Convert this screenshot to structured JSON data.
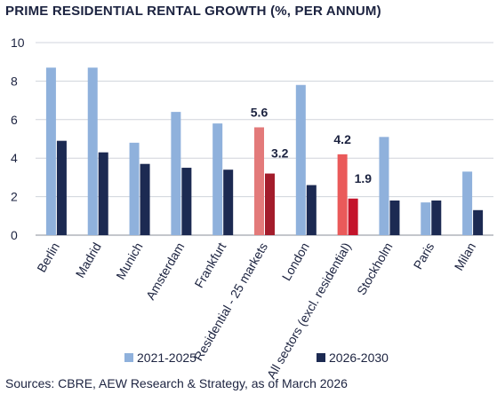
{
  "chart_data": {
    "type": "bar",
    "title": "PRIME RESIDENTIAL RENTAL GROWTH (%, PER ANNUM)",
    "categories": [
      "Berlin",
      "Madrid",
      "Munich",
      "Amsterdam",
      "Frankfurt",
      "Residential - 25 markets",
      "London",
      "All sectors (excl. residential)",
      "Stockholm",
      "Paris",
      "Milan"
    ],
    "series": [
      {
        "name": "2021-2025",
        "values": [
          8.7,
          8.7,
          4.8,
          6.4,
          5.8,
          5.6,
          7.8,
          4.2,
          5.1,
          1.7,
          3.3
        ]
      },
      {
        "name": "2026-2030",
        "values": [
          4.9,
          4.3,
          3.7,
          3.5,
          3.4,
          3.2,
          2.6,
          1.9,
          1.8,
          1.8,
          1.3
        ]
      }
    ],
    "ylim": [
      0,
      10
    ],
    "yticks": [
      0,
      2,
      4,
      6,
      8,
      10
    ],
    "grid": true,
    "legend_position": "bottom",
    "highlight_categories": [
      "Residential - 25 markets",
      "All sectors (excl. residential)"
    ],
    "data_labels": [
      {
        "category": "Residential - 25 markets",
        "series": 0,
        "text": "5.6"
      },
      {
        "category": "Residential - 25 markets",
        "series": 1,
        "text": "3.2"
      },
      {
        "category": "All sectors (excl. residential)",
        "series": 0,
        "text": "4.2"
      },
      {
        "category": "All sectors (excl. residential)",
        "series": 1,
        "text": "1.9"
      }
    ],
    "colors": {
      "series_2021_2025": "#8fb1dc",
      "series_2026_2030": "#1c2a52",
      "highlight_residential_2021_2025": "#e37a7a",
      "highlight_residential_2026_2030": "#a31c2b",
      "highlight_allsectors_2021_2025": "#ea5a5a",
      "highlight_allsectors_2026_2030": "#c4142b",
      "grid": "#d0d4dc",
      "axis": "#8a8f9a"
    }
  },
  "source": "Sources: CBRE, AEW Research & Strategy, as of March 2026"
}
